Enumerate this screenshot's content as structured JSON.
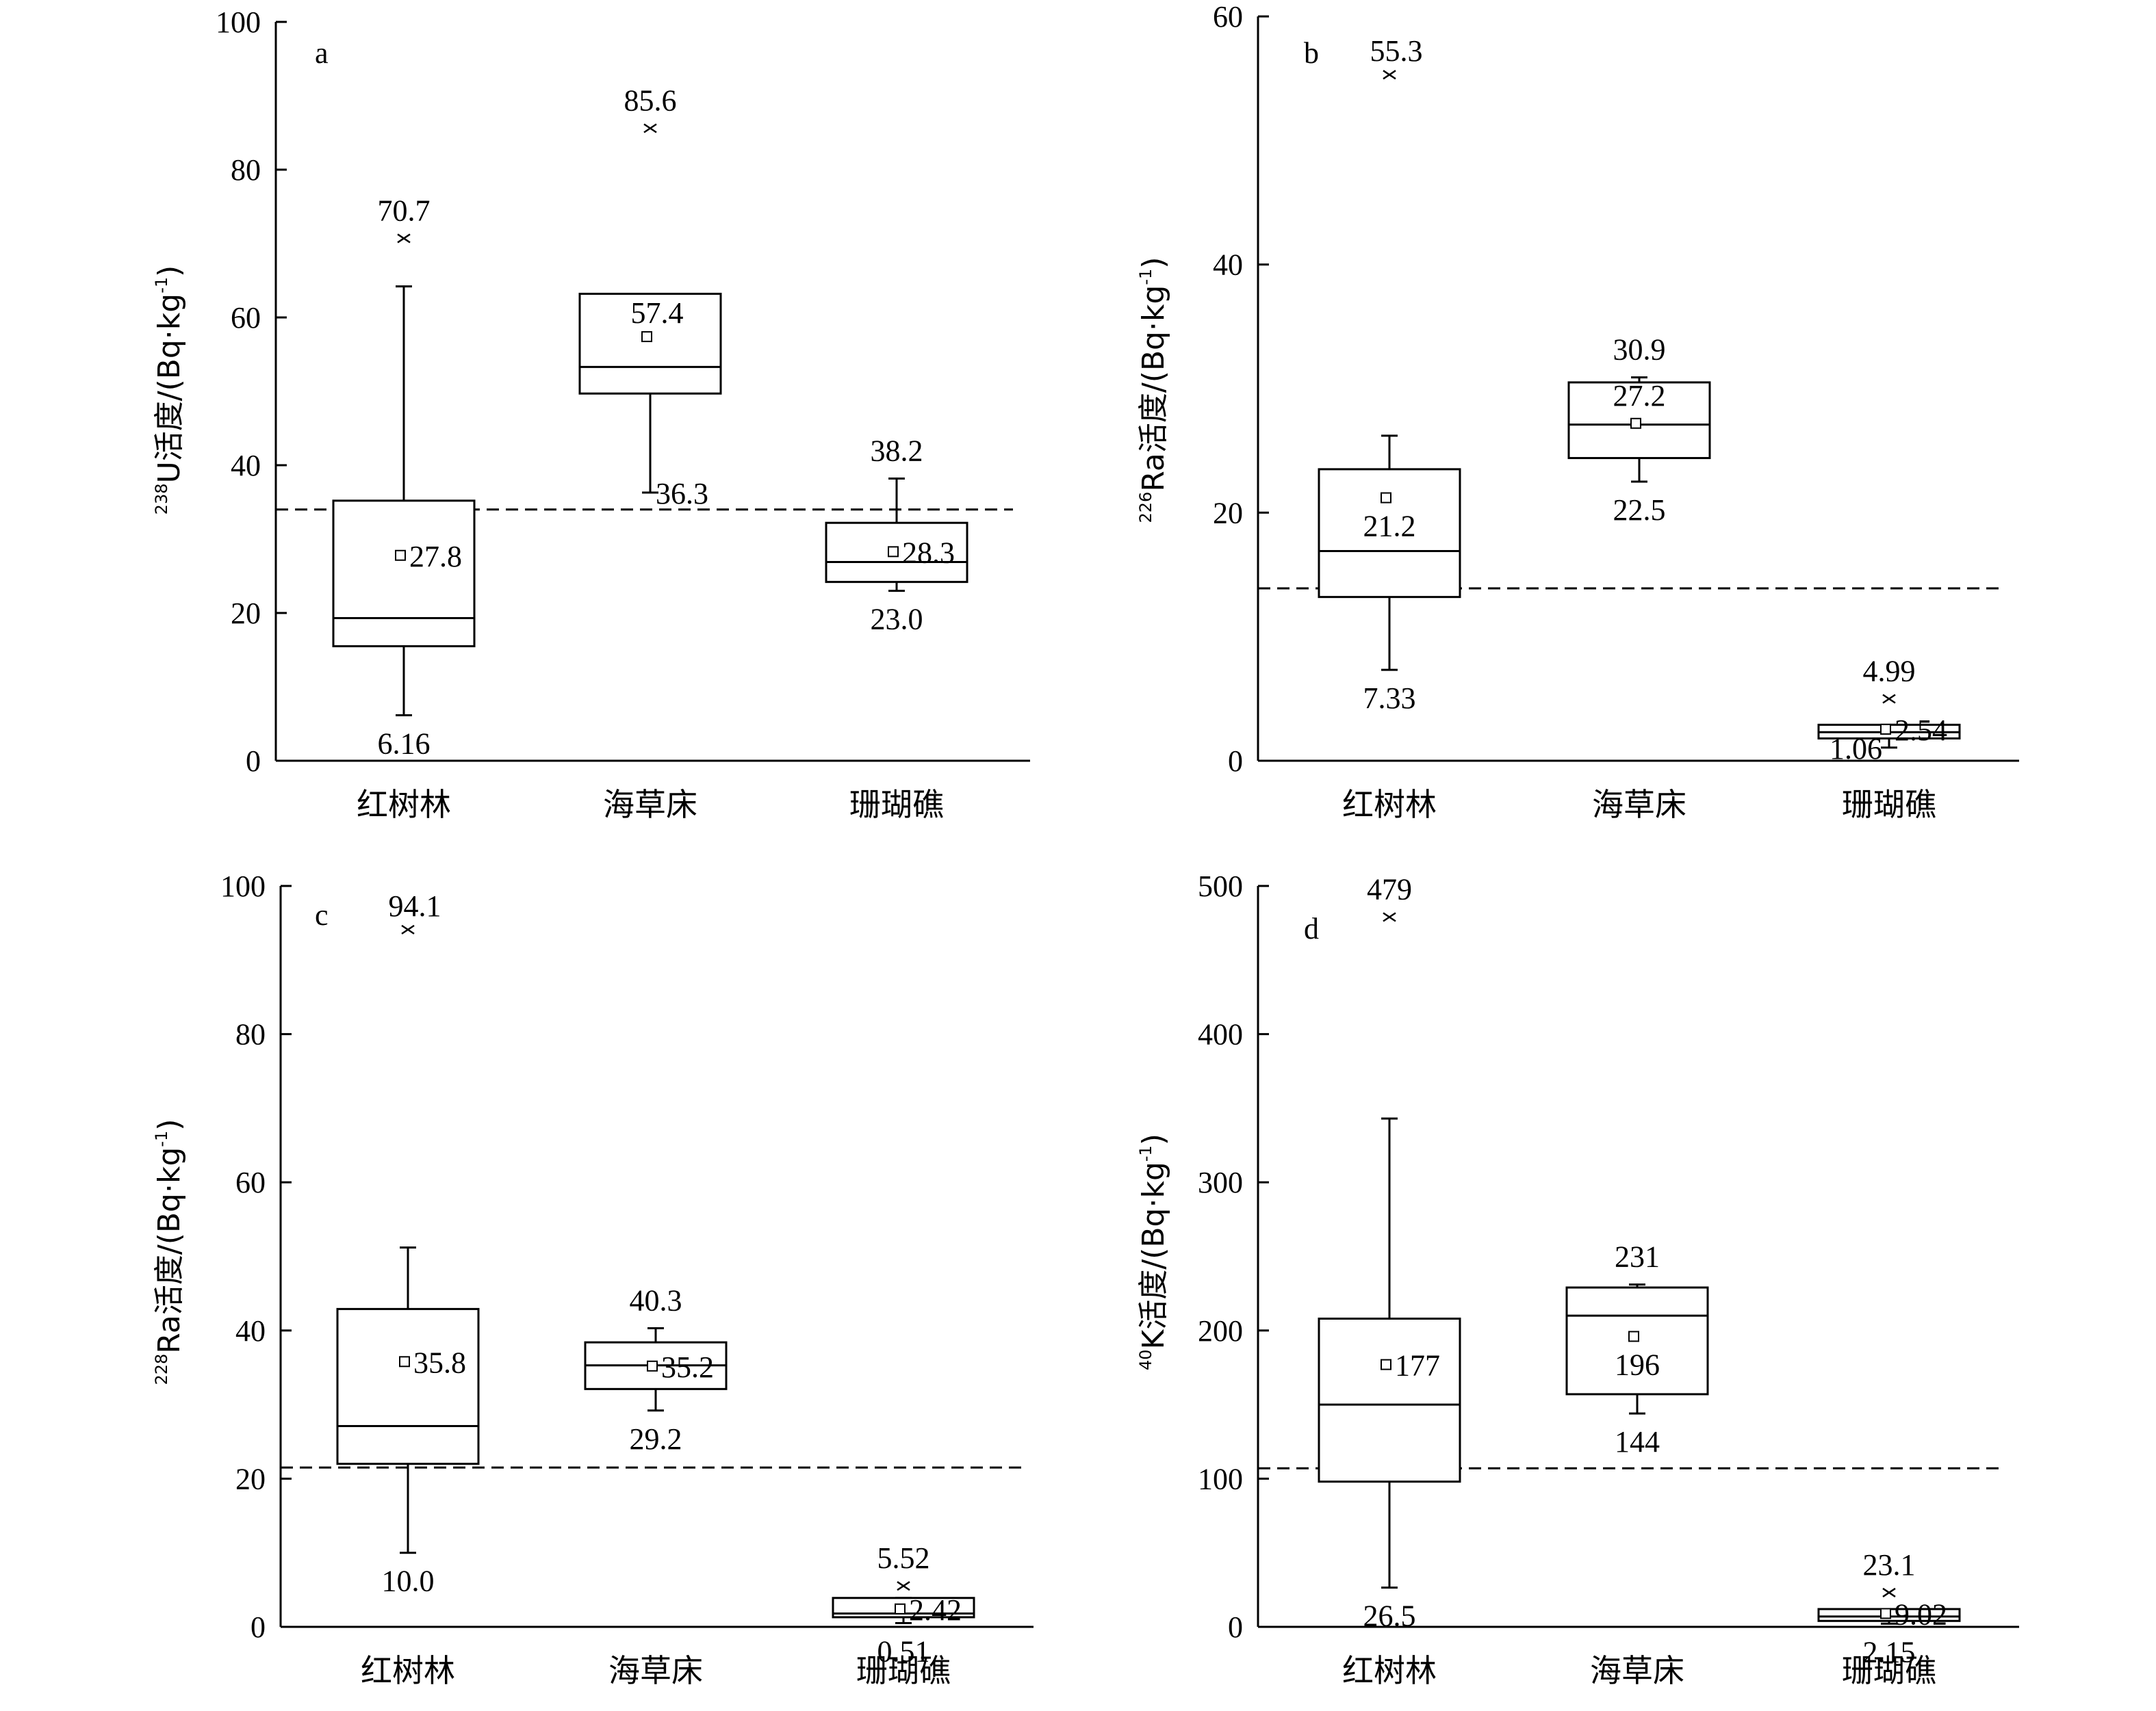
{
  "chart_data": [
    {
      "type": "box",
      "panel": "a",
      "ylabel": {
        "sup": "238",
        "main": "U活度/(Bq·kg",
        "exp": "-1",
        "close": ")"
      },
      "ylim": [
        0,
        100
      ],
      "yticks": [
        "0",
        "20",
        "40",
        "60",
        "80",
        "100"
      ],
      "reference_line": 34,
      "categories": [
        "红树林",
        "海草床",
        "珊瑚礁"
      ],
      "boxes": [
        {
          "min": 6.16,
          "q1": 15.5,
          "median": 19.3,
          "q3": 35.2,
          "whisker_high": 64.2,
          "mean": 27.8,
          "outliers": [
            70.7
          ],
          "labels": [
            {
              "text": "70.7",
              "value": 70.7,
              "pos": "above"
            },
            {
              "text": "27.8",
              "value": 27.8,
              "pos": "right"
            },
            {
              "text": "6.16",
              "value": 6.16,
              "pos": "below"
            }
          ]
        },
        {
          "min": 36.3,
          "q1": 49.7,
          "median": 53.3,
          "q3": 63.2,
          "whisker_high": 63.2,
          "mean": 57.4,
          "outliers": [
            85.6
          ],
          "labels": [
            {
              "text": "85.6",
              "value": 85.6,
              "pos": "above"
            },
            {
              "text": "57.4",
              "value": 57.4,
              "pos": "above-right"
            },
            {
              "text": "36.3",
              "value": 36.3,
              "pos": "right"
            }
          ]
        },
        {
          "min": 23.0,
          "q1": 24.2,
          "median": 26.9,
          "q3": 32.2,
          "whisker_high": 38.2,
          "mean": 28.3,
          "outliers": [],
          "labels": [
            {
              "text": "38.2",
              "value": 38.2,
              "pos": "above"
            },
            {
              "text": "28.3",
              "value": 28.3,
              "pos": "right"
            },
            {
              "text": "23.0",
              "value": 23.0,
              "pos": "below"
            }
          ]
        }
      ]
    },
    {
      "type": "box",
      "panel": "b",
      "ylabel": {
        "sup": "226",
        "main": "Ra活度/(Bq·kg",
        "exp": "-1",
        "close": ")"
      },
      "ylim": [
        0,
        60
      ],
      "yticks": [
        "0",
        "20",
        "40",
        "60"
      ],
      "reference_line": 13.9,
      "categories": [
        "红树林",
        "海草床",
        "珊瑚礁"
      ],
      "boxes": [
        {
          "min": 7.33,
          "q1": 13.2,
          "median": 16.9,
          "q3": 23.5,
          "whisker_high": 26.2,
          "mean": 21.2,
          "outliers": [
            55.3
          ],
          "labels": [
            {
              "text": "55.3",
              "value": 55.3,
              "pos": "above-right"
            },
            {
              "text": "21.2",
              "value": 21.2,
              "pos": "below"
            },
            {
              "text": "7.33",
              "value": 7.33,
              "pos": "below"
            }
          ]
        },
        {
          "min": 22.5,
          "q1": 24.4,
          "median": 27.1,
          "q3": 30.5,
          "whisker_high": 30.9,
          "mean": 27.2,
          "outliers": [],
          "labels": [
            {
              "text": "30.9",
              "value": 30.9,
              "pos": "above"
            },
            {
              "text": "27.2",
              "value": 27.2,
              "pos": "above"
            },
            {
              "text": "22.5",
              "value": 22.5,
              "pos": "below"
            }
          ]
        },
        {
          "min": 1.06,
          "q1": 1.8,
          "median": 2.3,
          "q3": 2.9,
          "whisker_high": 2.9,
          "mean": 2.54,
          "outliers": [
            4.99
          ],
          "labels": [
            {
              "text": "4.99",
              "value": 4.99,
              "pos": "above"
            },
            {
              "text": "2.54",
              "value": 2.54,
              "pos": "right"
            },
            {
              "text": "1.06",
              "value": 1.06,
              "pos": "left"
            }
          ]
        }
      ]
    },
    {
      "type": "box",
      "panel": "c",
      "ylabel": {
        "sup": "228",
        "main": "Ra活度/(Bq·kg",
        "exp": "-1",
        "close": ")"
      },
      "ylim": [
        0,
        100
      ],
      "yticks": [
        "0",
        "20",
        "40",
        "60",
        "80",
        "100"
      ],
      "reference_line": 21.5,
      "categories": [
        "红树林",
        "海草床",
        "珊瑚礁"
      ],
      "boxes": [
        {
          "min": 10.0,
          "q1": 22.0,
          "median": 27.1,
          "q3": 42.9,
          "whisker_high": 51.2,
          "mean": 35.8,
          "outliers": [
            94.1
          ],
          "labels": [
            {
              "text": "94.1",
              "value": 94.1,
              "pos": "above-right"
            },
            {
              "text": "35.8",
              "value": 35.8,
              "pos": "right"
            },
            {
              "text": "10.0",
              "value": 10.0,
              "pos": "below"
            }
          ]
        },
        {
          "min": 29.2,
          "q1": 32.1,
          "median": 35.3,
          "q3": 38.4,
          "whisker_high": 40.3,
          "mean": 35.2,
          "outliers": [],
          "labels": [
            {
              "text": "40.3",
              "value": 40.3,
              "pos": "above"
            },
            {
              "text": "35.2",
              "value": 35.2,
              "pos": "right"
            },
            {
              "text": "29.2",
              "value": 29.2,
              "pos": "below"
            }
          ]
        },
        {
          "min": 0.51,
          "q1": 1.3,
          "median": 1.8,
          "q3": 3.9,
          "whisker_high": 3.9,
          "mean": 2.42,
          "outliers": [
            5.52
          ],
          "labels": [
            {
              "text": "5.52",
              "value": 5.52,
              "pos": "above"
            },
            {
              "text": "2.42",
              "value": 2.42,
              "pos": "right"
            },
            {
              "text": "0.51",
              "value": 0.51,
              "pos": "below"
            }
          ]
        }
      ]
    },
    {
      "type": "box",
      "panel": "d",
      "ylabel": {
        "sup": "40",
        "main": "K活度/(Bq·kg",
        "exp": "-1",
        "close": ")"
      },
      "ylim": [
        0,
        500
      ],
      "yticks": [
        "0",
        "100",
        "200",
        "300",
        "400",
        "500"
      ],
      "reference_line": 107,
      "categories": [
        "红树林",
        "海草床",
        "珊瑚礁"
      ],
      "boxes": [
        {
          "min": 26.5,
          "q1": 98,
          "median": 150,
          "q3": 208,
          "whisker_high": 343,
          "mean": 177,
          "outliers": [
            479
          ],
          "labels": [
            {
              "text": "479",
              "value": 479,
              "pos": "above"
            },
            {
              "text": "177",
              "value": 177,
              "pos": "right"
            },
            {
              "text": "26.5",
              "value": 26.5,
              "pos": "below"
            }
          ]
        },
        {
          "min": 144,
          "q1": 157,
          "median": 210,
          "q3": 229,
          "whisker_high": 231,
          "mean": 196,
          "outliers": [],
          "labels": [
            {
              "text": "231",
              "value": 231,
              "pos": "above"
            },
            {
              "text": "196",
              "value": 196,
              "pos": "below"
            },
            {
              "text": "144",
              "value": 144,
              "pos": "below"
            }
          ]
        },
        {
          "min": 2.15,
          "q1": 4,
          "median": 7,
          "q3": 12,
          "whisker_high": 12,
          "mean": 9.02,
          "outliers": [
            23.1
          ],
          "labels": [
            {
              "text": "23.1",
              "value": 23.1,
              "pos": "above"
            },
            {
              "text": "9.02",
              "value": 9.02,
              "pos": "right"
            },
            {
              "text": "2.15",
              "value": 2.15,
              "pos": "below"
            }
          ]
        }
      ]
    }
  ]
}
